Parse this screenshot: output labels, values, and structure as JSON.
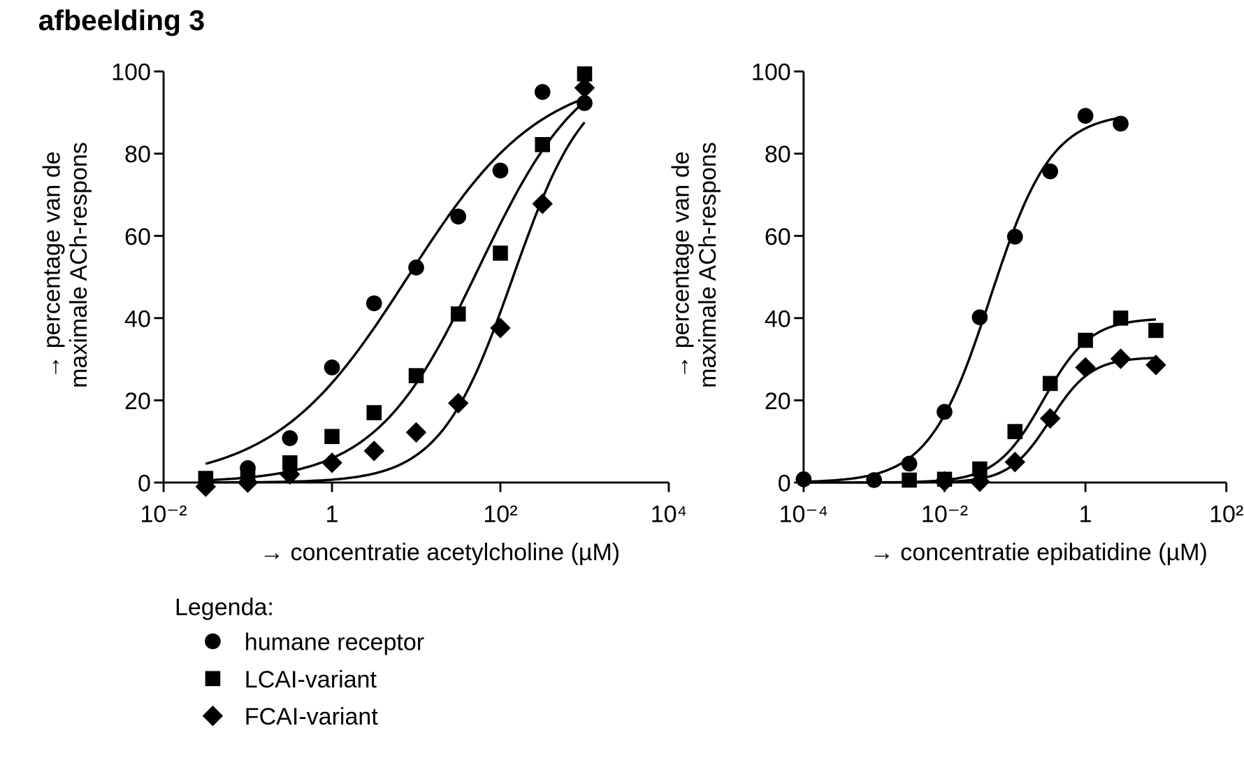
{
  "figure_title": "afbeelding 3",
  "legend": {
    "title": "Legenda:",
    "items": [
      {
        "marker": "circle",
        "label": "humane receptor"
      },
      {
        "marker": "square",
        "label": "LCAI-variant"
      },
      {
        "marker": "diamond",
        "label": "FCAI-variant"
      }
    ]
  },
  "chart_data": [
    {
      "type": "scatter",
      "title": "",
      "xlabel": "→ concentratie acetylcholine (µM)",
      "ylabel": [
        "→ percentage van de",
        "maximale ACh-respons"
      ],
      "xscale": "log",
      "xlim_log10": [
        -2,
        4
      ],
      "ylim": [
        0,
        100
      ],
      "xticks": [
        {
          "log10": -2,
          "label": "10⁻²"
        },
        {
          "log10": 0,
          "label": "1"
        },
        {
          "log10": 2,
          "label": "10²"
        },
        {
          "log10": 4,
          "label": "10⁴"
        }
      ],
      "yticks": [
        0,
        20,
        40,
        60,
        80,
        100
      ],
      "grid": false,
      "series": [
        {
          "name": "humane receptor",
          "marker": "circle",
          "x_log10": [
            -1,
            -0.5,
            0,
            0.5,
            1,
            1.5,
            2,
            2.5,
            3
          ],
          "y": [
            3.5,
            10.8,
            28,
            43.6,
            52.3,
            64.7,
            75.9,
            95,
            92.3
          ],
          "fit": {
            "top": 100,
            "log_ec50": 0.9,
            "hill": 0.55,
            "from": -1.5,
            "to": 3
          }
        },
        {
          "name": "LCAI-variant",
          "marker": "square",
          "x_log10": [
            -1.5,
            -1,
            -0.5,
            0,
            0.5,
            1,
            1.5,
            2,
            2.5,
            3
          ],
          "y": [
            1,
            2.3,
            4.8,
            11.2,
            17,
            26,
            41,
            55.8,
            82.2,
            99.4
          ],
          "fit": {
            "top": 105,
            "log_ec50": 1.75,
            "hill": 0.7,
            "from": -1.5,
            "to": 3
          }
        },
        {
          "name": "FCAI-variant",
          "marker": "diamond",
          "x_log10": [
            -1.5,
            -1,
            -0.5,
            0,
            0.5,
            1,
            1.5,
            2,
            2.5,
            3
          ],
          "y": [
            -1,
            0,
            2,
            4.8,
            7.7,
            12.2,
            19.3,
            37.6,
            67.8,
            96
          ],
          "fit": {
            "top": 100,
            "log_ec50": 2.15,
            "hill": 1.0,
            "from": -1.5,
            "to": 3
          }
        }
      ]
    },
    {
      "type": "scatter",
      "title": "",
      "xlabel": "→ concentratie epibatidine (µM)",
      "ylabel": [
        "→ percentage van de",
        "maximale ACh-respons"
      ],
      "xscale": "log",
      "xlim_log10": [
        -4,
        2
      ],
      "ylim": [
        0,
        100
      ],
      "xticks": [
        {
          "log10": -4,
          "label": "10⁻⁴"
        },
        {
          "log10": -2,
          "label": "10⁻²"
        },
        {
          "log10": 0,
          "label": "1"
        },
        {
          "log10": 2,
          "label": "10²"
        }
      ],
      "yticks": [
        0,
        20,
        40,
        60,
        80,
        100
      ],
      "grid": false,
      "series": [
        {
          "name": "humane receptor",
          "marker": "circle",
          "x_log10": [
            -4,
            -3,
            -2.5,
            -2,
            -1.5,
            -1,
            -0.5,
            0,
            0.5
          ],
          "y": [
            0.8,
            0.6,
            4.6,
            17.2,
            40.2,
            59.8,
            75.7,
            89.2,
            87.3
          ],
          "fit": {
            "top": 90,
            "log_ec50": -1.35,
            "hill": 1.0,
            "from": -4,
            "to": 0.5
          }
        },
        {
          "name": "LCAI-variant",
          "marker": "square",
          "x_log10": [
            -2.5,
            -2,
            -1.5,
            -1,
            -0.5,
            0,
            0.5,
            1
          ],
          "y": [
            0.6,
            0.8,
            3.3,
            12.4,
            24.1,
            34.6,
            40,
            37
          ],
          "fit": {
            "top": 40,
            "log_ec50": -0.6,
            "hill": 1.3,
            "from": -4,
            "to": 1
          }
        },
        {
          "name": "FCAI-variant",
          "marker": "diamond",
          "x_log10": [
            -2,
            -1.5,
            -1,
            -0.5,
            0,
            0.5,
            1
          ],
          "y": [
            0.3,
            0.2,
            5,
            15.6,
            28,
            30.1,
            28.6
          ],
          "fit": {
            "top": 30.5,
            "log_ec50": -0.5,
            "hill": 1.5,
            "from": -4,
            "to": 1
          }
        }
      ]
    }
  ]
}
